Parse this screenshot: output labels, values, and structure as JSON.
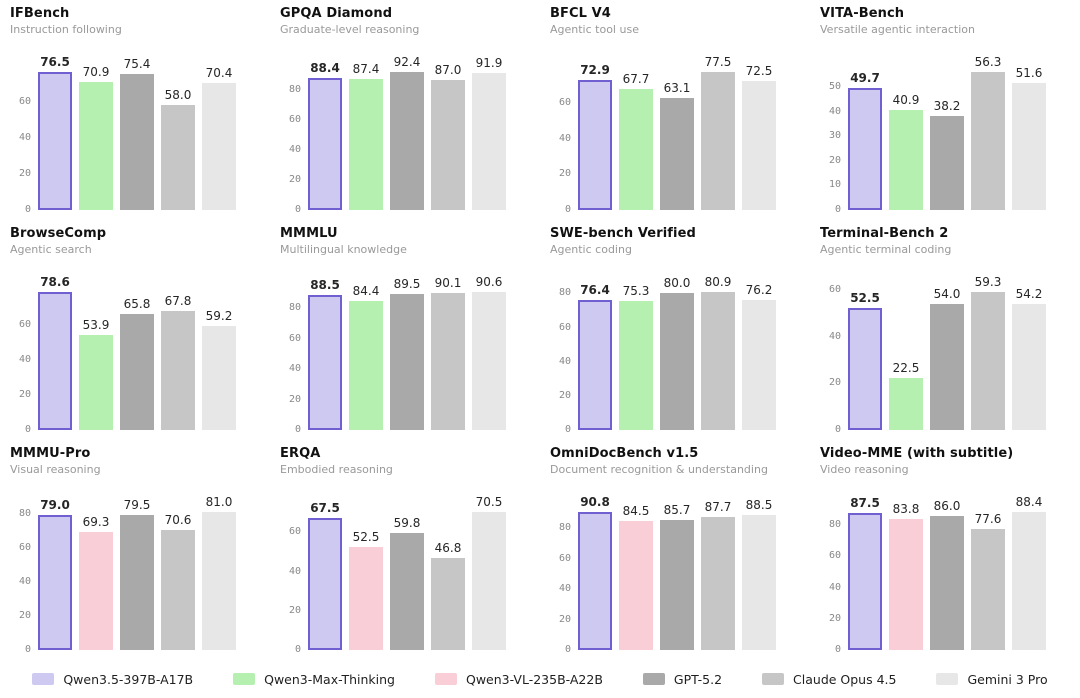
{
  "page": {
    "background": "#ffffff"
  },
  "models": {
    "colors": {
      "Qwen3.5-397B-A17B": {
        "fill": "#cdc9f1",
        "border": "#6f5fd0"
      },
      "Qwen3-Max-Thinking": {
        "fill": "#b5f0b1"
      },
      "Qwen3-VL-235B-A22B": {
        "fill": "#f9ced6"
      },
      "GPT-5.2": {
        "fill": "#a9a9a9"
      },
      "Claude Opus 4.5": {
        "fill": "#c6c6c6"
      },
      "Gemini 3 Pro": {
        "fill": "#e7e7e7"
      }
    }
  },
  "legend": {
    "items": [
      "Qwen3.5-397B-A17B",
      "Qwen3-Max-Thinking",
      "Qwen3-VL-235B-A22B",
      "GPT-5.2",
      "Claude Opus 4.5",
      "Gemini 3 Pro"
    ]
  },
  "chart_data": [
    {
      "type": "bar",
      "title": "IFBench",
      "subtitle": "Instruction following",
      "categories": [
        "Qwen3.5-397B-A17B",
        "Qwen3-Max-Thinking",
        "GPT-5.2",
        "Claude Opus 4.5",
        "Gemini 3 Pro"
      ],
      "values": [
        76.5,
        70.9,
        75.4,
        58.0,
        70.4
      ],
      "yticks": [
        0,
        20,
        40,
        60
      ],
      "ylim": [
        0,
        80.3
      ],
      "grid": false
    },
    {
      "type": "bar",
      "title": "GPQA Diamond",
      "subtitle": "Graduate-level reasoning",
      "categories": [
        "Qwen3.5-397B-A17B",
        "Qwen3-Max-Thinking",
        "GPT-5.2",
        "Claude Opus 4.5",
        "Gemini 3 Pro"
      ],
      "values": [
        88.4,
        87.4,
        92.4,
        87.0,
        91.9
      ],
      "yticks": [
        0,
        20,
        40,
        60,
        80
      ],
      "ylim": [
        0,
        97.0
      ],
      "grid": false
    },
    {
      "type": "bar",
      "title": "BFCL V4",
      "subtitle": "Agentic tool use",
      "categories": [
        "Qwen3.5-397B-A17B",
        "Qwen3-Max-Thinking",
        "GPT-5.2",
        "Claude Opus 4.5",
        "Gemini 3 Pro"
      ],
      "values": [
        72.9,
        67.7,
        63.1,
        77.5,
        72.5
      ],
      "yticks": [
        0,
        20,
        40,
        60
      ],
      "ylim": [
        0,
        81.4
      ],
      "grid": false
    },
    {
      "type": "bar",
      "title": "VITA-Bench",
      "subtitle": "Versatile agentic interaction",
      "categories": [
        "Qwen3.5-397B-A17B",
        "Qwen3-Max-Thinking",
        "GPT-5.2",
        "Claude Opus 4.5",
        "Gemini 3 Pro"
      ],
      "values": [
        49.7,
        40.9,
        38.2,
        56.3,
        51.6
      ],
      "yticks": [
        0,
        10,
        20,
        30,
        40,
        50
      ],
      "ylim": [
        0,
        59.1
      ],
      "grid": false
    },
    {
      "type": "bar",
      "title": "BrowseComp",
      "subtitle": "Agentic search",
      "categories": [
        "Qwen3.5-397B-A17B",
        "Qwen3-Max-Thinking",
        "GPT-5.2",
        "Claude Opus 4.5",
        "Gemini 3 Pro"
      ],
      "values": [
        78.6,
        53.9,
        65.8,
        67.8,
        59.2
      ],
      "yticks": [
        0,
        20,
        40,
        60
      ],
      "ylim": [
        0,
        82.5
      ],
      "grid": false
    },
    {
      "type": "bar",
      "title": "MMMLU",
      "subtitle": "Multilingual knowledge",
      "categories": [
        "Qwen3.5-397B-A17B",
        "Qwen3-Max-Thinking",
        "GPT-5.2",
        "Claude Opus 4.5",
        "Gemini 3 Pro"
      ],
      "values": [
        88.5,
        84.4,
        89.5,
        90.1,
        90.6
      ],
      "yticks": [
        0,
        20,
        40,
        60,
        80
      ],
      "ylim": [
        0,
        95.1
      ],
      "grid": false
    },
    {
      "type": "bar",
      "title": "SWE-bench Verified",
      "subtitle": "Agentic coding",
      "categories": [
        "Qwen3.5-397B-A17B",
        "Qwen3-Max-Thinking",
        "GPT-5.2",
        "Claude Opus 4.5",
        "Gemini 3 Pro"
      ],
      "values": [
        76.4,
        75.3,
        80.0,
        80.9,
        76.2
      ],
      "yticks": [
        0,
        20,
        40,
        60,
        80
      ],
      "ylim": [
        0,
        84.9
      ],
      "grid": false
    },
    {
      "type": "bar",
      "title": "Terminal-Bench 2",
      "subtitle": "Agentic terminal coding",
      "categories": [
        "Qwen3.5-397B-A17B",
        "Qwen3-Max-Thinking",
        "GPT-5.2",
        "Claude Opus 4.5",
        "Gemini 3 Pro"
      ],
      "values": [
        52.5,
        22.5,
        54.0,
        59.3,
        54.2
      ],
      "yticks": [
        0,
        20,
        40,
        60
      ],
      "ylim": [
        0,
        62.3
      ],
      "grid": false
    },
    {
      "type": "bar",
      "title": "MMMU-Pro",
      "subtitle": "Visual reasoning",
      "categories": [
        "Qwen3.5-397B-A17B",
        "Qwen3-VL-235B-A22B",
        "GPT-5.2",
        "Claude Opus 4.5",
        "Gemini 3 Pro"
      ],
      "values": [
        79.0,
        69.3,
        79.5,
        70.6,
        81.0
      ],
      "yticks": [
        0,
        20,
        40,
        60,
        80
      ],
      "ylim": [
        0,
        85.1
      ],
      "grid": false
    },
    {
      "type": "bar",
      "title": "ERQA",
      "subtitle": "Embodied reasoning",
      "categories": [
        "Qwen3.5-397B-A17B",
        "Qwen3-VL-235B-A22B",
        "GPT-5.2",
        "Claude Opus 4.5",
        "Gemini 3 Pro"
      ],
      "values": [
        67.5,
        52.5,
        59.8,
        46.8,
        70.5
      ],
      "yticks": [
        0,
        20,
        40,
        60
      ],
      "ylim": [
        0,
        74.0
      ],
      "grid": false
    },
    {
      "type": "bar",
      "title": "OmniDocBench v1.5",
      "subtitle": "Document recognition & understanding",
      "categories": [
        "Qwen3.5-397B-A17B",
        "Qwen3-VL-235B-A22B",
        "GPT-5.2",
        "Claude Opus 4.5",
        "Gemini 3 Pro"
      ],
      "values": [
        90.8,
        84.5,
        85.7,
        87.7,
        88.5
      ],
      "yticks": [
        0,
        20,
        40,
        60,
        80
      ],
      "ylim": [
        0,
        95.3
      ],
      "grid": false
    },
    {
      "type": "bar",
      "title": "Video-MME (with subtitle)",
      "subtitle": "Video reasoning",
      "categories": [
        "Qwen3.5-397B-A17B",
        "Qwen3-VL-235B-A22B",
        "GPT-5.2",
        "Claude Opus 4.5",
        "Gemini 3 Pro"
      ],
      "values": [
        87.5,
        83.8,
        86.0,
        77.6,
        88.4
      ],
      "yticks": [
        0,
        20,
        40,
        60,
        80
      ],
      "ylim": [
        0,
        92.8
      ],
      "grid": false
    }
  ]
}
